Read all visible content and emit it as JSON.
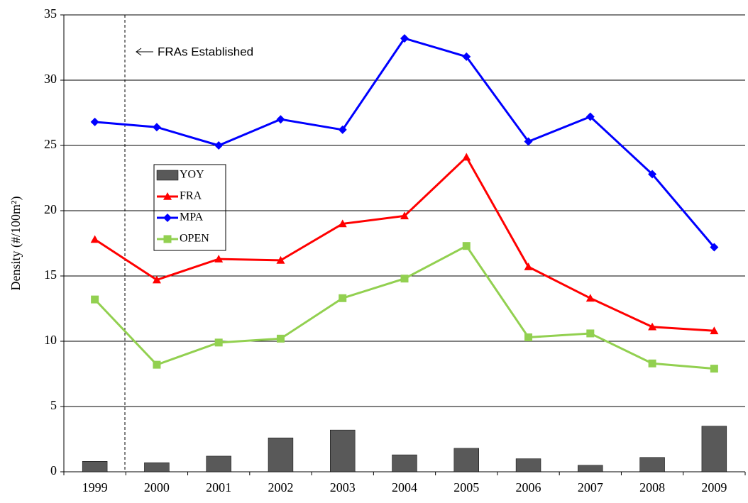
{
  "chart_data": {
    "type": "combo",
    "y_label": "Density (#/100m²)",
    "annotation": "FRAs Established",
    "categories": [
      "1999",
      "2000",
      "2001",
      "2002",
      "2003",
      "2004",
      "2005",
      "2006",
      "2007",
      "2008",
      "2009"
    ],
    "series": [
      {
        "name": "YOY",
        "type": "bar",
        "color": "#595959",
        "values": [
          0.8,
          0.7,
          1.2,
          2.6,
          3.2,
          1.3,
          1.8,
          1.0,
          0.5,
          1.1,
          3.5
        ]
      },
      {
        "name": "FRA",
        "type": "line",
        "marker": "triangle",
        "color": "#ff0000",
        "values": [
          17.8,
          14.7,
          16.3,
          16.2,
          19.0,
          19.6,
          24.1,
          15.7,
          13.3,
          11.1,
          10.8
        ]
      },
      {
        "name": "MPA",
        "type": "line",
        "marker": "diamond",
        "color": "#0000ff",
        "values": [
          26.8,
          26.4,
          25.0,
          27.0,
          26.2,
          33.2,
          31.8,
          25.3,
          27.2,
          22.8,
          17.2
        ]
      },
      {
        "name": "OPEN",
        "type": "line",
        "marker": "square",
        "color": "#92d050",
        "values": [
          13.2,
          8.2,
          9.9,
          10.2,
          13.3,
          14.8,
          17.3,
          10.3,
          10.6,
          8.3,
          7.9
        ]
      }
    ],
    "ylim": [
      0,
      35
    ],
    "yticks": [
      0,
      5,
      10,
      15,
      20,
      25,
      30,
      35
    ],
    "grid": true
  }
}
